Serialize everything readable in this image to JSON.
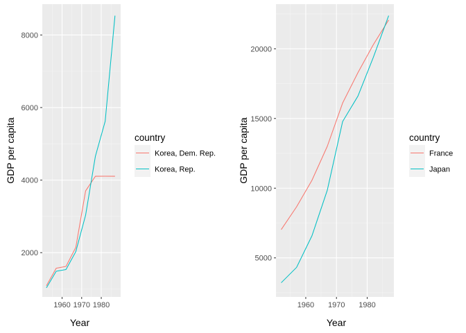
{
  "chart_data": [
    {
      "type": "line",
      "xlabel": "Year",
      "ylabel": "GDP per capita",
      "xlim": [
        1949.9,
        1989.9
      ],
      "ylim": [
        780,
        8850
      ],
      "x_ticks": [
        1960,
        1970,
        1980
      ],
      "y_ticks": [
        2000,
        4000,
        6000,
        8000
      ],
      "grid": true,
      "legend": {
        "title": "country",
        "position": "right"
      },
      "x": [
        1952,
        1957,
        1962,
        1967,
        1972,
        1977,
        1982,
        1987
      ],
      "series": [
        {
          "name": "Korea, Dem. Rep.",
          "color": "#F8766D",
          "values": [
            1088,
            1571,
            1622,
            2144,
            3702,
            4106,
            4107,
            4106
          ]
        },
        {
          "name": "Korea, Rep.",
          "color": "#00BFC4",
          "values": [
            1031,
            1488,
            1536,
            2029,
            3031,
            4657,
            5623,
            8533
          ]
        }
      ]
    },
    {
      "type": "line",
      "xlabel": "Year",
      "ylabel": "GDP per capita",
      "xlim": [
        1950.3,
        1988.7
      ],
      "ylim": [
        2200,
        23200
      ],
      "x_ticks": [
        1960,
        1970,
        1980
      ],
      "y_ticks": [
        5000,
        10000,
        15000,
        20000
      ],
      "grid": true,
      "legend": {
        "title": "country",
        "position": "right"
      },
      "x": [
        1952,
        1957,
        1962,
        1967,
        1972,
        1977,
        1982,
        1987
      ],
      "series": [
        {
          "name": "France",
          "color": "#F8766D",
          "values": [
            7030,
            8663,
            10560,
            12999,
            16107,
            18293,
            20294,
            22066
          ]
        },
        {
          "name": "Japan",
          "color": "#00BFC4",
          "values": [
            3217,
            4318,
            6577,
            9847,
            14779,
            16610,
            19384,
            22376
          ]
        }
      ]
    }
  ]
}
